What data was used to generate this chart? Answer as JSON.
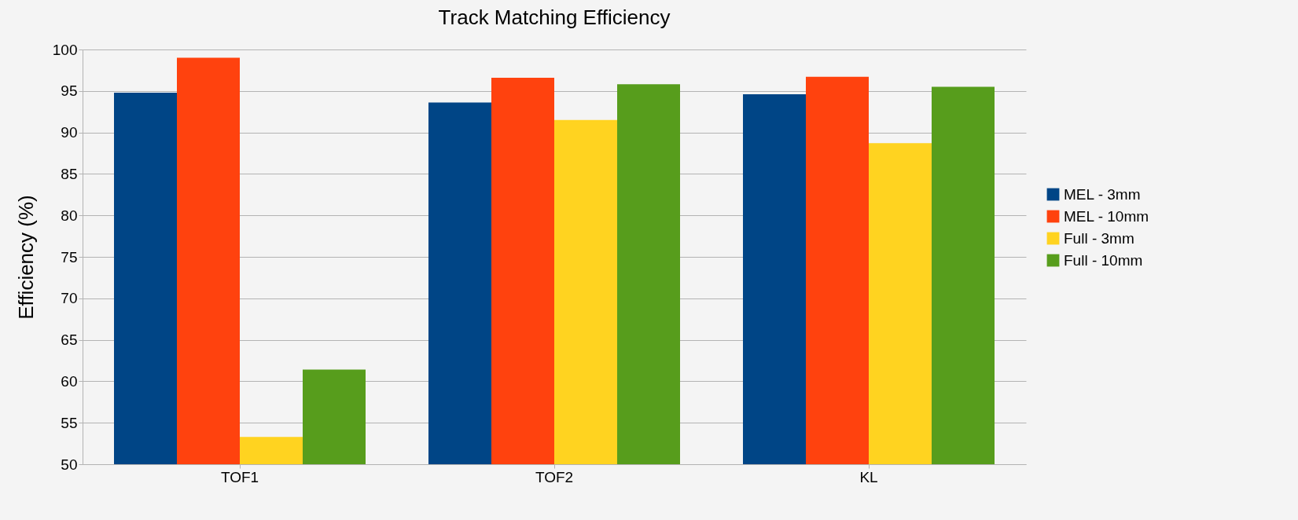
{
  "chart_data": {
    "type": "bar",
    "title": "Track Matching Efficiency",
    "ylabel": "Efficiency (%)",
    "categories": [
      "TOF1",
      "TOF2",
      "KL"
    ],
    "series": [
      {
        "name": "MEL - 3mm",
        "color": "#004586",
        "values": [
          94.8,
          93.6,
          94.6
        ]
      },
      {
        "name": "MEL - 10mm",
        "color": "#ff420e",
        "values": [
          99.0,
          96.6,
          96.7
        ]
      },
      {
        "name": "Full - 3mm",
        "color": "#ffd320",
        "values": [
          53.3,
          91.5,
          88.7
        ]
      },
      {
        "name": "Full - 10mm",
        "color": "#579d1c",
        "values": [
          61.4,
          95.8,
          95.5
        ]
      }
    ],
    "ylim": [
      50,
      100
    ],
    "yticks": [
      50,
      55,
      60,
      65,
      70,
      75,
      80,
      85,
      90,
      95,
      100
    ],
    "grid": "y",
    "legend": "right"
  }
}
